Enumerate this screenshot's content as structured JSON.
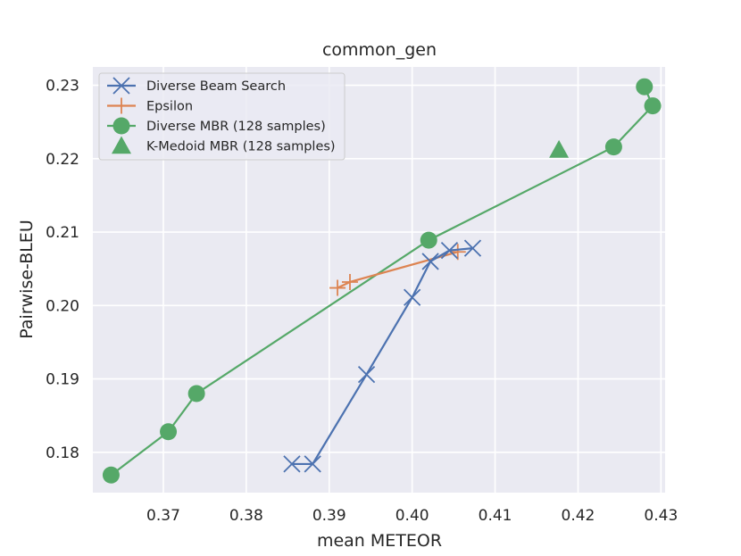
{
  "chart_data": {
    "type": "line",
    "title": "common_gen",
    "xlabel": "mean METEOR",
    "ylabel": "Pairwise-BLEU",
    "xlim": [
      0.3615,
      0.4305
    ],
    "ylim": [
      0.1745,
      0.2325
    ],
    "xticks": [
      0.37,
      0.38,
      0.39,
      0.4,
      0.41,
      0.42,
      0.43
    ],
    "xtick_labels": [
      "0.37",
      "0.38",
      "0.39",
      "0.40",
      "0.41",
      "0.42",
      "0.43"
    ],
    "yticks": [
      0.18,
      0.19,
      0.2,
      0.21,
      0.22,
      0.23
    ],
    "ytick_labels": [
      "0.18",
      "0.19",
      "0.20",
      "0.21",
      "0.22",
      "0.23"
    ],
    "grid": true,
    "legend_position": "top-left",
    "series": [
      {
        "name": "Diverse Beam Search",
        "marker": "x",
        "color": "#4c72b0",
        "line": true,
        "points": [
          [
            0.3855,
            0.1784
          ],
          [
            0.388,
            0.1784
          ],
          [
            0.3945,
            0.1906
          ],
          [
            0.4,
            0.2011
          ],
          [
            0.4022,
            0.206
          ],
          [
            0.4045,
            0.2075
          ],
          [
            0.4073,
            0.2078
          ]
        ]
      },
      {
        "name": "Epsilon",
        "marker": "plus",
        "color": "#dd8452",
        "line": true,
        "points": [
          [
            0.391,
            0.2024
          ],
          [
            0.3925,
            0.2032
          ],
          [
            0.4055,
            0.2073
          ]
        ]
      },
      {
        "name": "Diverse MBR (128 samples)",
        "marker": "circle",
        "color": "#55a868",
        "line": true,
        "points": [
          [
            0.3637,
            0.1769
          ],
          [
            0.3706,
            0.1828
          ],
          [
            0.374,
            0.188
          ],
          [
            0.402,
            0.2089
          ],
          [
            0.4243,
            0.2216
          ],
          [
            0.429,
            0.2272
          ],
          [
            0.428,
            0.2298
          ]
        ]
      },
      {
        "name": "K-Medoid MBR (128 samples)",
        "marker": "triangle",
        "color": "#55a868",
        "line": false,
        "points": [
          [
            0.4177,
            0.2212
          ]
        ]
      }
    ]
  }
}
